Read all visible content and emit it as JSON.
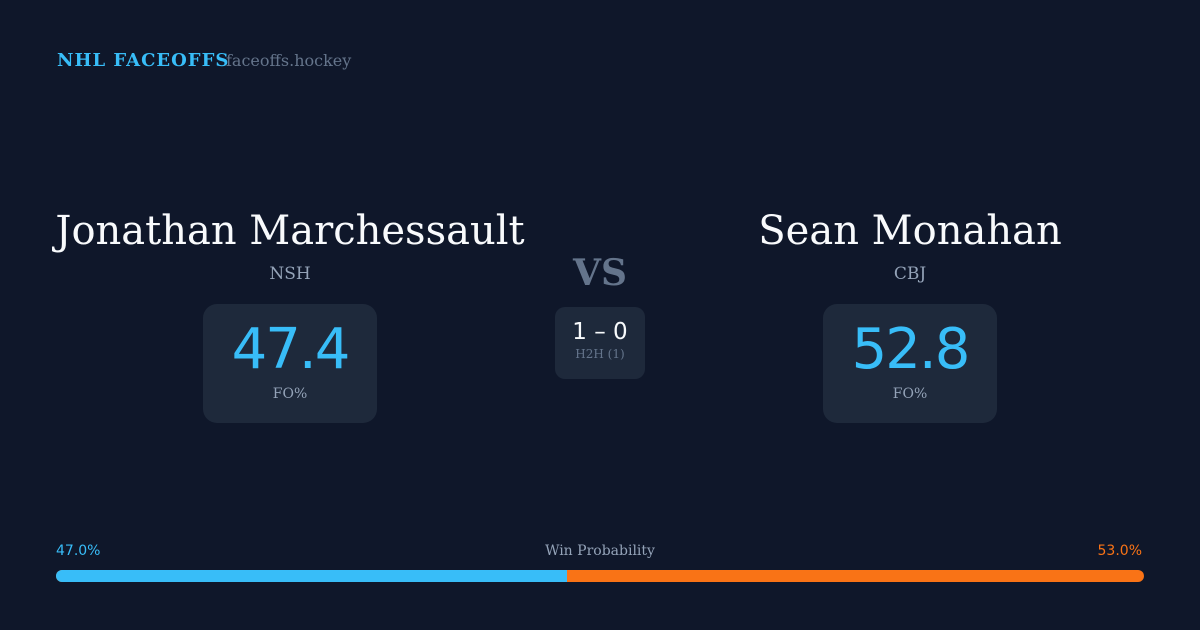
{
  "header": {
    "brand": "NHL FACEOFFS",
    "site": "faceoffs.hockey"
  },
  "player1": {
    "name": "Jonathan Marchessault",
    "team": "NSH",
    "fo_pct": "47.4",
    "fo_label": "FO%"
  },
  "player2": {
    "name": "Sean Monahan",
    "team": "CBJ",
    "fo_pct": "52.8",
    "fo_label": "FO%"
  },
  "vs": "VS",
  "h2h": {
    "score": "1 – 0",
    "label": "H2H (1)"
  },
  "win_probability": {
    "label": "Win Probability",
    "p1": "47.0%",
    "p2": "53.0%",
    "p1_value": 47.0,
    "p1_color": "#38bdf8",
    "p2_color": "#f97316"
  }
}
